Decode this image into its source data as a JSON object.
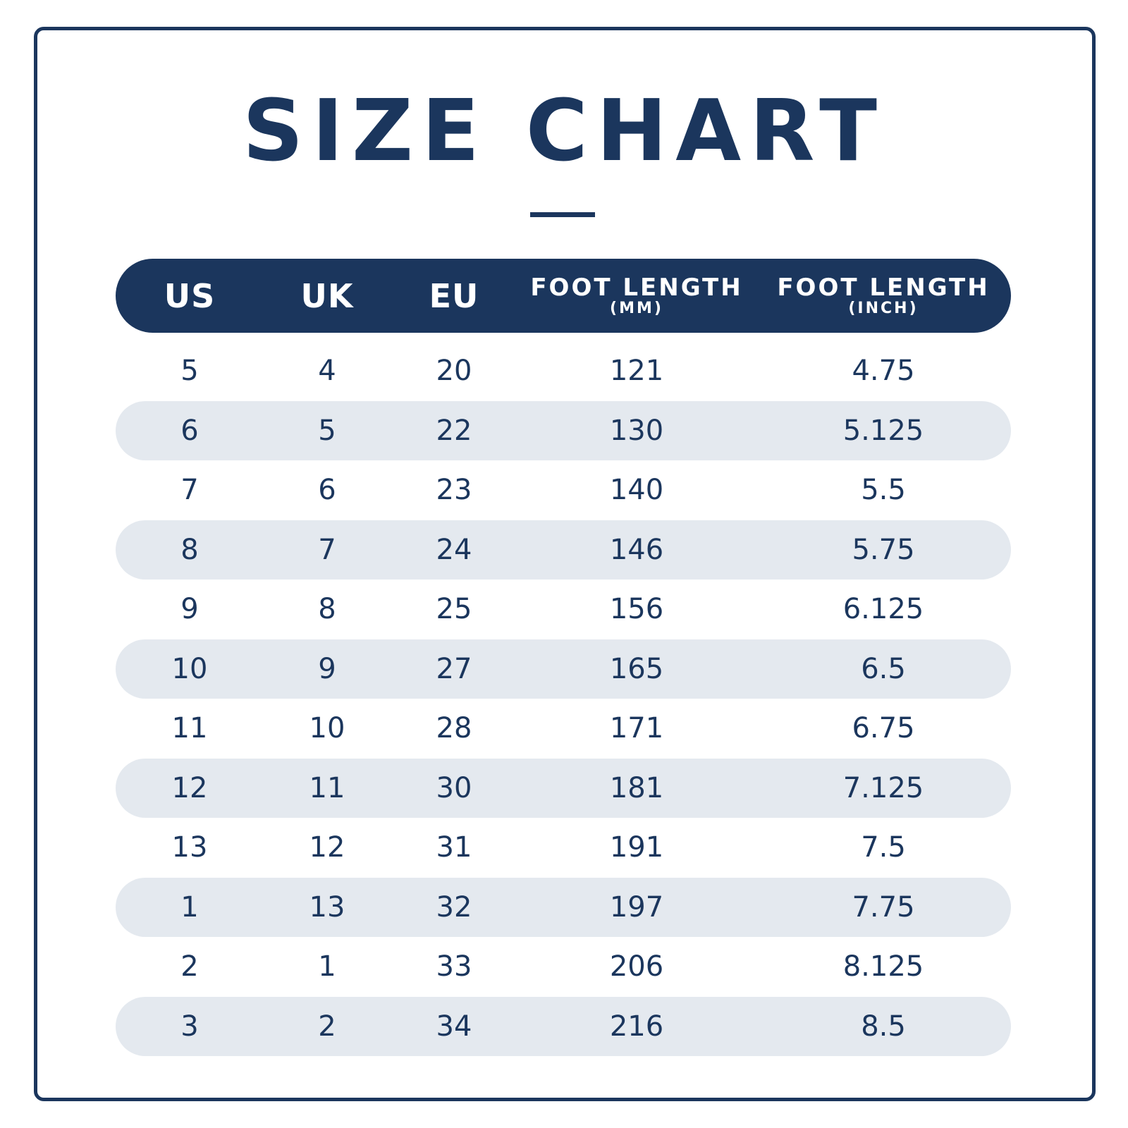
{
  "title": "SIZE CHART",
  "columns": [
    {
      "main": "US",
      "sub": ""
    },
    {
      "main": "UK",
      "sub": ""
    },
    {
      "main": "EU",
      "sub": ""
    },
    {
      "main": "FOOT LENGTH",
      "sub": "(MM)"
    },
    {
      "main": "FOOT LENGTH",
      "sub": "(INCH)"
    }
  ],
  "rows": [
    [
      "5",
      "4",
      "20",
      "121",
      "4.75"
    ],
    [
      "6",
      "5",
      "22",
      "130",
      "5.125"
    ],
    [
      "7",
      "6",
      "23",
      "140",
      "5.5"
    ],
    [
      "8",
      "7",
      "24",
      "146",
      "5.75"
    ],
    [
      "9",
      "8",
      "25",
      "156",
      "6.125"
    ],
    [
      "10",
      "9",
      "27",
      "165",
      "6.5"
    ],
    [
      "11",
      "10",
      "28",
      "171",
      "6.75"
    ],
    [
      "12",
      "11",
      "30",
      "181",
      "7.125"
    ],
    [
      "13",
      "12",
      "31",
      "191",
      "7.5"
    ],
    [
      "1",
      "13",
      "32",
      "197",
      "7.75"
    ],
    [
      "2",
      "1",
      "33",
      "206",
      "8.125"
    ],
    [
      "3",
      "2",
      "34",
      "216",
      "8.5"
    ]
  ],
  "colors": {
    "primary": "#1b365d",
    "stripe": "#e4e9ef",
    "background": "#ffffff"
  }
}
